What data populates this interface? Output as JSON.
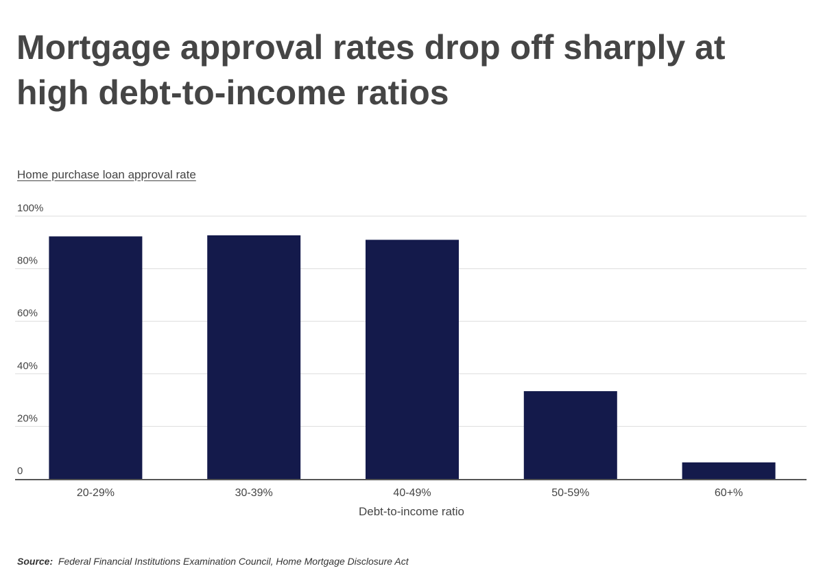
{
  "title": "Mortgage approval rates drop off sharply at high debt-to-income ratios",
  "source_label": "Source:",
  "source_text": "Federal Financial Institutions Examination Council, Home Mortgage Disclosure Act",
  "chart_data": {
    "type": "bar",
    "ylabel": "Home purchase loan approval rate",
    "xlabel": "Debt-to-income ratio",
    "categories": [
      "20-29%",
      "30-39%",
      "40-49%",
      "50-59%",
      "60+%"
    ],
    "values": [
      92.3,
      92.7,
      91.0,
      33.4,
      6.3
    ],
    "ylim": [
      0,
      100
    ],
    "yticks": [
      0,
      20,
      40,
      60,
      80,
      100
    ],
    "ytick_labels": [
      "0",
      "20%",
      "40%",
      "60%",
      "80%",
      "100%"
    ],
    "grid": true,
    "bar_color": "#141a4b",
    "grid_color": "#dddddd",
    "axis_color": "#555555"
  }
}
